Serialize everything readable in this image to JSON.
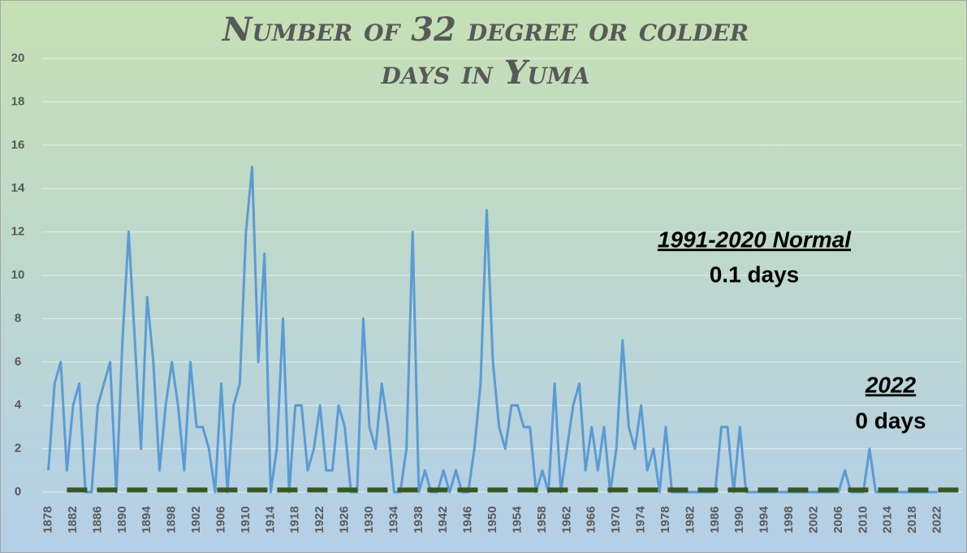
{
  "chart_data": {
    "type": "line",
    "title": [
      "Number of 32 degree or colder",
      "days in Yuma"
    ],
    "x": [
      1878,
      1879,
      1880,
      1881,
      1882,
      1883,
      1884,
      1885,
      1886,
      1887,
      1888,
      1889,
      1890,
      1891,
      1892,
      1893,
      1894,
      1895,
      1896,
      1897,
      1898,
      1899,
      1900,
      1901,
      1902,
      1903,
      1904,
      1905,
      1906,
      1907,
      1908,
      1909,
      1910,
      1911,
      1912,
      1913,
      1914,
      1915,
      1916,
      1917,
      1918,
      1919,
      1920,
      1921,
      1922,
      1923,
      1924,
      1925,
      1926,
      1927,
      1928,
      1929,
      1930,
      1931,
      1932,
      1933,
      1934,
      1935,
      1936,
      1937,
      1938,
      1939,
      1940,
      1941,
      1942,
      1943,
      1944,
      1945,
      1946,
      1947,
      1948,
      1949,
      1950,
      1951,
      1952,
      1953,
      1954,
      1955,
      1956,
      1957,
      1958,
      1959,
      1960,
      1961,
      1962,
      1963,
      1964,
      1965,
      1966,
      1967,
      1968,
      1969,
      1970,
      1971,
      1972,
      1973,
      1974,
      1975,
      1976,
      1977,
      1978,
      1979,
      1980,
      1981,
      1982,
      1983,
      1984,
      1985,
      1986,
      1987,
      1988,
      1989,
      1990,
      1991,
      1992,
      1993,
      1994,
      1995,
      1996,
      1997,
      1998,
      1999,
      2000,
      2001,
      2002,
      2003,
      2004,
      2005,
      2006,
      2007,
      2008,
      2009,
      2010,
      2011,
      2012,
      2013,
      2014,
      2015,
      2016,
      2017,
      2018,
      2019,
      2020,
      2021,
      2022
    ],
    "values": [
      1,
      5,
      6,
      1,
      4,
      5,
      0,
      0,
      4,
      5,
      6,
      0,
      7,
      12,
      7,
      2,
      9,
      6,
      1,
      4,
      6,
      4,
      1,
      6,
      3,
      3,
      2,
      0,
      5,
      0,
      4,
      5,
      12,
      15,
      6,
      11,
      0,
      2,
      8,
      0,
      4,
      4,
      1,
      2,
      4,
      1,
      1,
      4,
      3,
      0,
      0,
      8,
      3,
      2,
      5,
      3,
      0,
      0,
      2,
      12,
      0,
      1,
      0,
      0,
      1,
      0,
      1,
      0,
      0,
      2,
      5,
      13,
      6,
      3,
      2,
      4,
      4,
      3,
      3,
      0,
      1,
      0,
      5,
      0,
      2,
      4,
      5,
      1,
      3,
      1,
      3,
      0,
      2,
      7,
      3,
      2,
      4,
      1,
      2,
      0,
      3,
      0,
      0,
      0,
      0,
      0,
      0,
      0,
      0,
      3,
      3,
      0,
      3,
      0,
      0,
      0,
      0,
      0,
      0,
      0,
      0,
      0,
      0,
      0,
      0,
      0,
      0,
      0,
      0,
      1,
      0,
      0,
      0,
      2,
      0,
      0,
      0,
      0,
      0,
      0,
      0,
      0,
      0,
      0,
      0
    ],
    "color": "#5b9bd5",
    "reference_line": {
      "value": 0.1,
      "color": "#375623",
      "dashed": true
    },
    "xlim": [
      1877,
      2026
    ],
    "xticks": [
      1878,
      1882,
      1886,
      1890,
      1894,
      1898,
      1902,
      1906,
      1910,
      1914,
      1918,
      1922,
      1926,
      1930,
      1934,
      1938,
      1942,
      1946,
      1950,
      1954,
      1958,
      1962,
      1966,
      1970,
      1974,
      1978,
      1982,
      1986,
      1990,
      1994,
      1998,
      2002,
      2006,
      2010,
      2014,
      2018,
      2022
    ],
    "ylim": [
      0,
      20
    ],
    "yticks": [
      0,
      2,
      4,
      6,
      8,
      10,
      12,
      14,
      16,
      18,
      20
    ],
    "grid": true,
    "annotations": [
      {
        "text": "1991-2020 Normal",
        "style": "underline"
      },
      {
        "text": "0.1 days"
      },
      {
        "text": "2022",
        "style": "underline"
      },
      {
        "text": "0 days"
      }
    ]
  }
}
